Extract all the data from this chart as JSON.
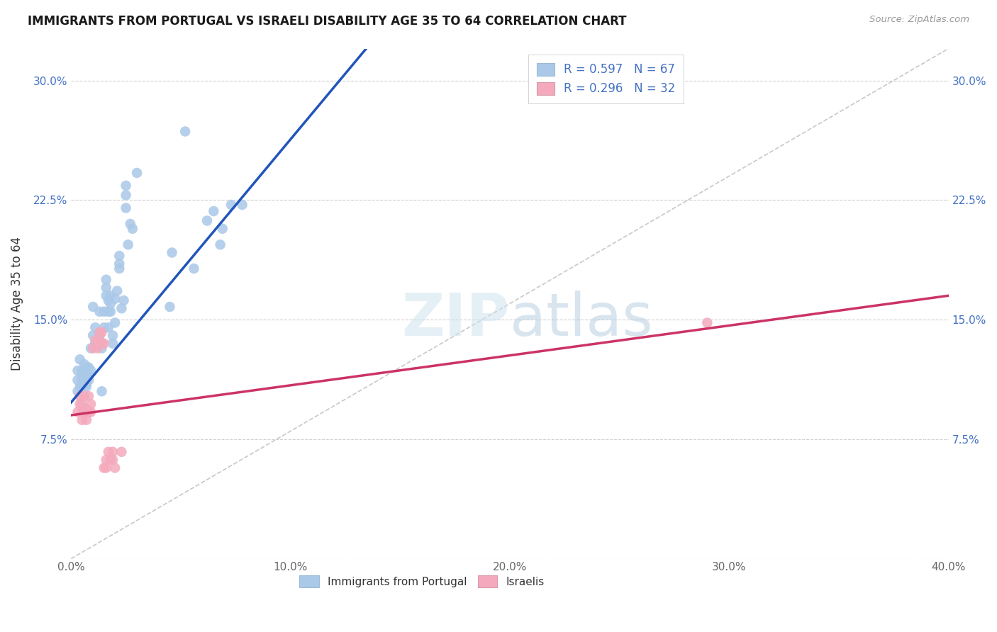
{
  "title": "IMMIGRANTS FROM PORTUGAL VS ISRAELI DISABILITY AGE 35 TO 64 CORRELATION CHART",
  "source": "Source: ZipAtlas.com",
  "ylabel": "Disability Age 35 to 64",
  "xlim": [
    0.0,
    0.4
  ],
  "ylim": [
    0.0,
    0.32
  ],
  "xticks": [
    0.0,
    0.1,
    0.2,
    0.3,
    0.4
  ],
  "xtick_labels": [
    "0.0%",
    "10.0%",
    "20.0%",
    "30.0%",
    "40.0%"
  ],
  "yticks": [
    0.0,
    0.075,
    0.15,
    0.225,
    0.3
  ],
  "ytick_labels": [
    "",
    "7.5%",
    "15.0%",
    "22.5%",
    "30.0%"
  ],
  "blue_R": 0.597,
  "blue_N": 67,
  "pink_R": 0.296,
  "pink_N": 32,
  "blue_dot_color": "#aac8e8",
  "pink_dot_color": "#f4aabc",
  "blue_line_color": "#2255bb",
  "pink_line_color": "#cc3366",
  "watermark": "ZIPatlas",
  "blue_line_x0": 0.0,
  "blue_line_y0": 0.098,
  "blue_line_x1": 0.1,
  "blue_line_y1": 0.263,
  "pink_line_x0": 0.0,
  "pink_line_y0": 0.09,
  "pink_line_x1": 0.4,
  "pink_line_y1": 0.165,
  "blue_scatter": [
    [
      0.003,
      0.105
    ],
    [
      0.003,
      0.118
    ],
    [
      0.003,
      0.112
    ],
    [
      0.004,
      0.108
    ],
    [
      0.004,
      0.125
    ],
    [
      0.005,
      0.118
    ],
    [
      0.005,
      0.112
    ],
    [
      0.005,
      0.115
    ],
    [
      0.005,
      0.108
    ],
    [
      0.006,
      0.112
    ],
    [
      0.006,
      0.122
    ],
    [
      0.006,
      0.116
    ],
    [
      0.007,
      0.115
    ],
    [
      0.007,
      0.11
    ],
    [
      0.007,
      0.108
    ],
    [
      0.007,
      0.12
    ],
    [
      0.008,
      0.115
    ],
    [
      0.008,
      0.12
    ],
    [
      0.008,
      0.112
    ],
    [
      0.009,
      0.132
    ],
    [
      0.009,
      0.118
    ],
    [
      0.01,
      0.14
    ],
    [
      0.01,
      0.158
    ],
    [
      0.011,
      0.135
    ],
    [
      0.011,
      0.145
    ],
    [
      0.013,
      0.155
    ],
    [
      0.013,
      0.14
    ],
    [
      0.014,
      0.105
    ],
    [
      0.014,
      0.132
    ],
    [
      0.015,
      0.145
    ],
    [
      0.015,
      0.155
    ],
    [
      0.016,
      0.165
    ],
    [
      0.016,
      0.17
    ],
    [
      0.016,
      0.175
    ],
    [
      0.017,
      0.155
    ],
    [
      0.017,
      0.162
    ],
    [
      0.017,
      0.145
    ],
    [
      0.018,
      0.165
    ],
    [
      0.018,
      0.16
    ],
    [
      0.018,
      0.155
    ],
    [
      0.019,
      0.135
    ],
    [
      0.019,
      0.14
    ],
    [
      0.02,
      0.148
    ],
    [
      0.02,
      0.163
    ],
    [
      0.021,
      0.168
    ],
    [
      0.022,
      0.182
    ],
    [
      0.022,
      0.19
    ],
    [
      0.022,
      0.185
    ],
    [
      0.023,
      0.157
    ],
    [
      0.024,
      0.162
    ],
    [
      0.025,
      0.22
    ],
    [
      0.025,
      0.228
    ],
    [
      0.025,
      0.234
    ],
    [
      0.026,
      0.197
    ],
    [
      0.027,
      0.21
    ],
    [
      0.028,
      0.207
    ],
    [
      0.03,
      0.242
    ],
    [
      0.045,
      0.158
    ],
    [
      0.046,
      0.192
    ],
    [
      0.052,
      0.268
    ],
    [
      0.056,
      0.182
    ],
    [
      0.062,
      0.212
    ],
    [
      0.065,
      0.218
    ],
    [
      0.068,
      0.197
    ],
    [
      0.069,
      0.207
    ],
    [
      0.073,
      0.222
    ],
    [
      0.078,
      0.222
    ]
  ],
  "pink_scatter": [
    [
      0.003,
      0.092
    ],
    [
      0.004,
      0.097
    ],
    [
      0.004,
      0.102
    ],
    [
      0.005,
      0.087
    ],
    [
      0.005,
      0.092
    ],
    [
      0.005,
      0.097
    ],
    [
      0.006,
      0.102
    ],
    [
      0.006,
      0.092
    ],
    [
      0.007,
      0.087
    ],
    [
      0.007,
      0.094
    ],
    [
      0.008,
      0.102
    ],
    [
      0.008,
      0.092
    ],
    [
      0.009,
      0.092
    ],
    [
      0.009,
      0.097
    ],
    [
      0.01,
      0.132
    ],
    [
      0.011,
      0.137
    ],
    [
      0.012,
      0.132
    ],
    [
      0.013,
      0.142
    ],
    [
      0.013,
      0.137
    ],
    [
      0.014,
      0.142
    ],
    [
      0.014,
      0.135
    ],
    [
      0.015,
      0.135
    ],
    [
      0.015,
      0.057
    ],
    [
      0.016,
      0.062
    ],
    [
      0.016,
      0.057
    ],
    [
      0.017,
      0.067
    ],
    [
      0.018,
      0.062
    ],
    [
      0.019,
      0.067
    ],
    [
      0.019,
      0.062
    ],
    [
      0.02,
      0.057
    ],
    [
      0.023,
      0.067
    ],
    [
      0.29,
      0.148
    ]
  ],
  "figsize": [
    14.06,
    8.92
  ],
  "dpi": 100
}
